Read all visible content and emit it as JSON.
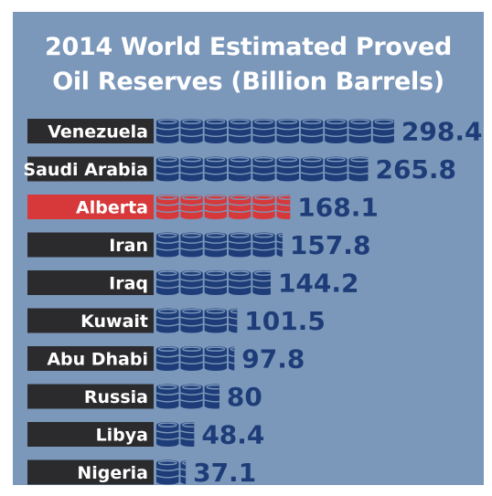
{
  "chart_data": {
    "type": "bar",
    "title_lines": [
      "2014 World Estimated Proved",
      "Oil Reserves (Billion Barrels)"
    ],
    "unit_per_barrel_icon": 30,
    "categories": [
      "Venezuela",
      "Saudi Arabia",
      "Alberta",
      "Iran",
      "Iraq",
      "Kuwait",
      "Abu Dhabi",
      "Russia",
      "Libya",
      "Nigeria"
    ],
    "values": [
      298.4,
      265.8,
      168.1,
      157.8,
      144.2,
      101.5,
      97.8,
      80,
      48.4,
      37.1
    ],
    "value_labels": [
      "298.4",
      "265.8",
      "168.1",
      "157.8",
      "144.2",
      "101.5",
      "97.8",
      "80",
      "48.4",
      "37.1"
    ],
    "highlight": "Alberta"
  },
  "colors": {
    "background": "#7b97ba",
    "label_box": "#2b2b2d",
    "highlight_box": "#d7393a",
    "barrel": "#1e3d78",
    "barrel_highlight": "#d7393a",
    "value": "#1e3d78",
    "title": "#ffffff",
    "label_text": "#ffffff"
  }
}
